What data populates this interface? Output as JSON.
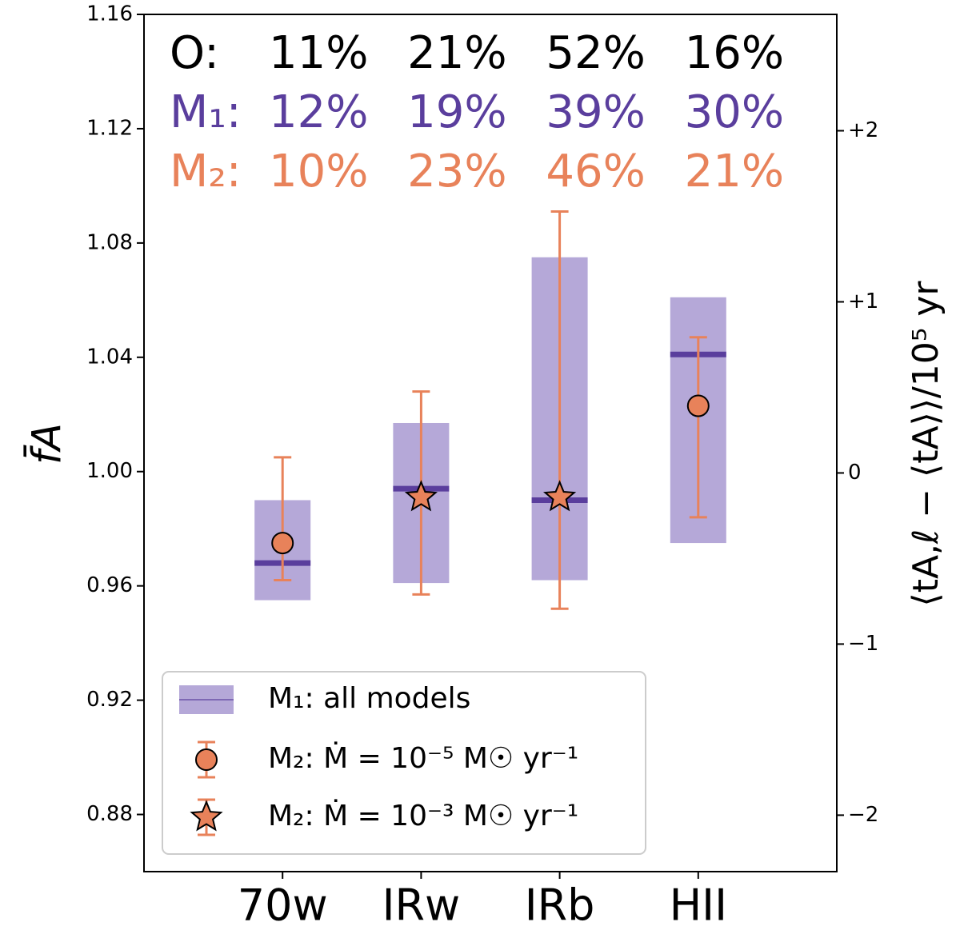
{
  "chart_data": {
    "type": "box",
    "categories": [
      "70w",
      "IRw",
      "IRb",
      "HII"
    ],
    "ylabel": "f̄A",
    "y2label": "⟨tA,ℓ − ⟨tA⟩⟩/10⁵ yr",
    "ylim": [
      0.86,
      1.16
    ],
    "yticks": [
      0.88,
      0.92,
      0.96,
      1.0,
      1.04,
      1.08,
      1.12,
      1.16
    ],
    "ytick_labels": [
      "0.88",
      "0.92",
      "0.96",
      "1.00",
      "1.04",
      "1.08",
      "1.12",
      "1.16"
    ],
    "y2lim": [
      -2.33,
      2.68
    ],
    "y2ticks": [
      {
        "value": -2,
        "label": "−2"
      },
      {
        "value": -1,
        "label": "−1"
      },
      0,
      {
        "value": 1,
        "label": "+1"
      },
      {
        "value": 2,
        "label": "+2"
      }
    ],
    "boxes": {
      "name": "M₁: all models",
      "color": "#b5a8d8",
      "median_color": "#5a3e9d",
      "low": [
        0.955,
        0.961,
        0.962,
        0.975
      ],
      "high": [
        0.99,
        1.017,
        1.075,
        1.061
      ],
      "median": [
        0.968,
        0.994,
        0.99,
        1.041
      ]
    },
    "series": [
      {
        "name": "M₂: Ṁ = 10⁻⁵ M☉ yr⁻¹",
        "marker": "circle",
        "color": "#e8825a",
        "values": [
          0.975,
          null,
          null,
          1.023
        ],
        "lower": [
          0.962,
          null,
          null,
          0.984
        ],
        "upper": [
          1.005,
          null,
          null,
          1.047
        ]
      },
      {
        "name": "M₂: Ṁ = 10⁻³ M☉ yr⁻¹",
        "marker": "star",
        "color": "#e8825a",
        "values": [
          null,
          0.991,
          0.991,
          null
        ],
        "lower": [
          null,
          0.957,
          0.952,
          null
        ],
        "upper": [
          null,
          1.028,
          1.091,
          null
        ]
      }
    ],
    "annotations": [
      {
        "label": "O:",
        "color": "#000000",
        "values": [
          11,
          21,
          52,
          16
        ],
        "value_labels": [
          "11%",
          "21%",
          "52%",
          "16%"
        ]
      },
      {
        "label": "M₁:",
        "color": "#5a3e9d",
        "values": [
          12,
          19,
          39,
          30
        ],
        "value_labels": [
          "12%",
          "19%",
          "39%",
          "30%"
        ]
      },
      {
        "label": "M₂:",
        "color": "#e8825a",
        "values": [
          10,
          23,
          46,
          21
        ],
        "value_labels": [
          "10%",
          "23%",
          "46%",
          "21%"
        ]
      }
    ],
    "legend": "lower left"
  }
}
